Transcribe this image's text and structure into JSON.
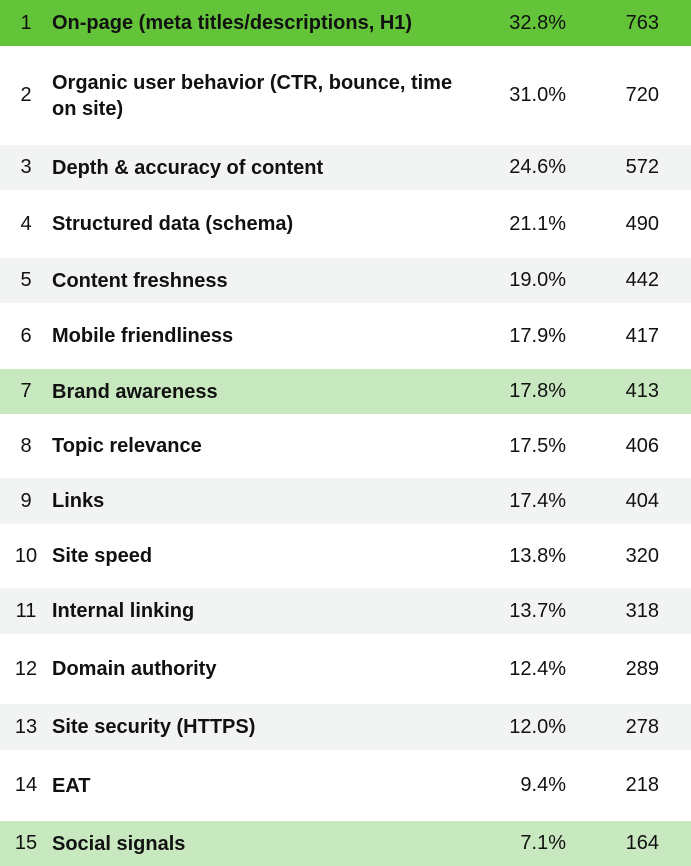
{
  "rows": [
    {
      "rank": "1",
      "factor": "On-page (meta titles/descriptions, H1)",
      "percent": "32.8%",
      "count": "763"
    },
    {
      "rank": "2",
      "factor": "Organic user behavior (CTR, bounce, time on site)",
      "percent": "31.0%",
      "count": "720"
    },
    {
      "rank": "3",
      "factor": "Depth & accuracy of content",
      "percent": "24.6%",
      "count": "572"
    },
    {
      "rank": "4",
      "factor": "Structured data (schema)",
      "percent": "21.1%",
      "count": "490"
    },
    {
      "rank": "5",
      "factor": "Content freshness",
      "percent": "19.0%",
      "count": "442"
    },
    {
      "rank": "6",
      "factor": "Mobile friendliness",
      "percent": "17.9%",
      "count": "417"
    },
    {
      "rank": "7",
      "factor": "Brand awareness",
      "percent": "17.8%",
      "count": "413"
    },
    {
      "rank": "8",
      "factor": "Topic relevance",
      "percent": "17.5%",
      "count": "406"
    },
    {
      "rank": "9",
      "factor": "Links",
      "percent": "17.4%",
      "count": "404"
    },
    {
      "rank": "10",
      "factor": "Site speed",
      "percent": "13.8%",
      "count": "320"
    },
    {
      "rank": "11",
      "factor": "Internal linking",
      "percent": "13.7%",
      "count": "318"
    },
    {
      "rank": "12",
      "factor": "Domain authority",
      "percent": "12.4%",
      "count": "289"
    },
    {
      "rank": "13",
      "factor": "Site security (HTTPS)",
      "percent": "12.0%",
      "count": "278"
    },
    {
      "rank": "14",
      "factor": "EAT",
      "percent": "9.4%",
      "count": "218"
    },
    {
      "rank": "15",
      "factor": "Social signals",
      "percent": "7.1%",
      "count": "164"
    }
  ],
  "colors": {
    "highlight_strong": "#63c43a",
    "highlight_light": "#c8e8bf",
    "stripe": "#f2f4f3"
  }
}
